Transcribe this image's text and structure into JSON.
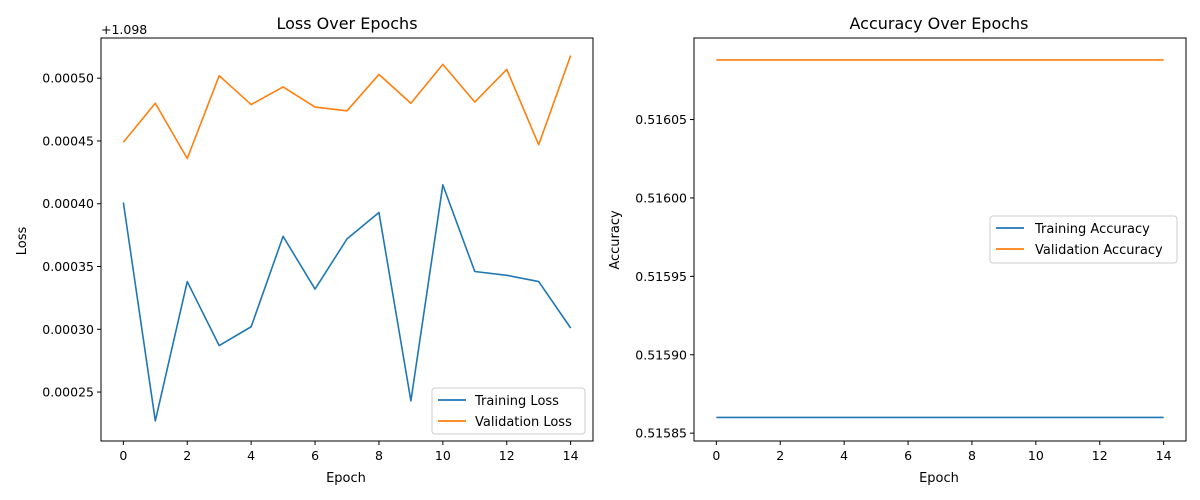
{
  "chart_data": [
    {
      "type": "line",
      "title": "Loss Over Epochs",
      "xlabel": "Epoch",
      "ylabel": "Loss",
      "y_offset_label": "+1.098",
      "y_offset": 1.098,
      "xlim": [
        -0.7,
        14.7
      ],
      "ylim": [
        0.000211,
        0.000532
      ],
      "xticks": [
        0,
        2,
        4,
        6,
        8,
        10,
        12,
        14
      ],
      "yticks": [
        0.00025,
        0.0003,
        0.00035,
        0.0004,
        0.00045,
        0.0005
      ],
      "ytick_labels": [
        "0.00025",
        "0.00030",
        "0.00035",
        "0.00040",
        "0.00045",
        "0.00050"
      ],
      "grid": false,
      "legend_position": "bottom-right",
      "x": [
        0,
        1,
        2,
        3,
        4,
        5,
        6,
        7,
        8,
        9,
        10,
        11,
        12,
        13,
        14
      ],
      "series": [
        {
          "name": "Training Loss",
          "color": "#1f77b4",
          "values": [
            0.000401,
            0.000227,
            0.000338,
            0.000287,
            0.000302,
            0.000374,
            0.000332,
            0.000372,
            0.000393,
            0.000243,
            0.000415,
            0.000346,
            0.000343,
            0.000338,
            0.000301
          ]
        },
        {
          "name": "Validation Loss",
          "color": "#ff7f0e",
          "values": [
            0.000449,
            0.00048,
            0.000436,
            0.000502,
            0.000479,
            0.000493,
            0.000477,
            0.000474,
            0.000503,
            0.00048,
            0.000511,
            0.000481,
            0.000507,
            0.000447,
            0.000518
          ]
        }
      ]
    },
    {
      "type": "line",
      "title": "Accuracy Over Epochs",
      "xlabel": "Epoch",
      "ylabel": "Accuracy",
      "xlim": [
        -0.7,
        14.7
      ],
      "ylim": [
        0.515845,
        0.516102
      ],
      "xticks": [
        0,
        2,
        4,
        6,
        8,
        10,
        12,
        14
      ],
      "yticks": [
        0.51585,
        0.5159,
        0.51595,
        0.516,
        0.51605
      ],
      "ytick_labels": [
        "0.51585",
        "0.51590",
        "0.51595",
        "0.51600",
        "0.51605"
      ],
      "grid": false,
      "legend_position": "center-right",
      "x": [
        0,
        1,
        2,
        3,
        4,
        5,
        6,
        7,
        8,
        9,
        10,
        11,
        12,
        13,
        14
      ],
      "series": [
        {
          "name": "Training Accuracy",
          "color": "#1f77b4",
          "values": [
            0.51586,
            0.51586,
            0.51586,
            0.51586,
            0.51586,
            0.51586,
            0.51586,
            0.51586,
            0.51586,
            0.51586,
            0.51586,
            0.51586,
            0.51586,
            0.51586,
            0.51586
          ]
        },
        {
          "name": "Validation Accuracy",
          "color": "#ff7f0e",
          "values": [
            0.516088,
            0.516088,
            0.516088,
            0.516088,
            0.516088,
            0.516088,
            0.516088,
            0.516088,
            0.516088,
            0.516088,
            0.516088,
            0.516088,
            0.516088,
            0.516088,
            0.516088
          ]
        }
      ]
    }
  ]
}
